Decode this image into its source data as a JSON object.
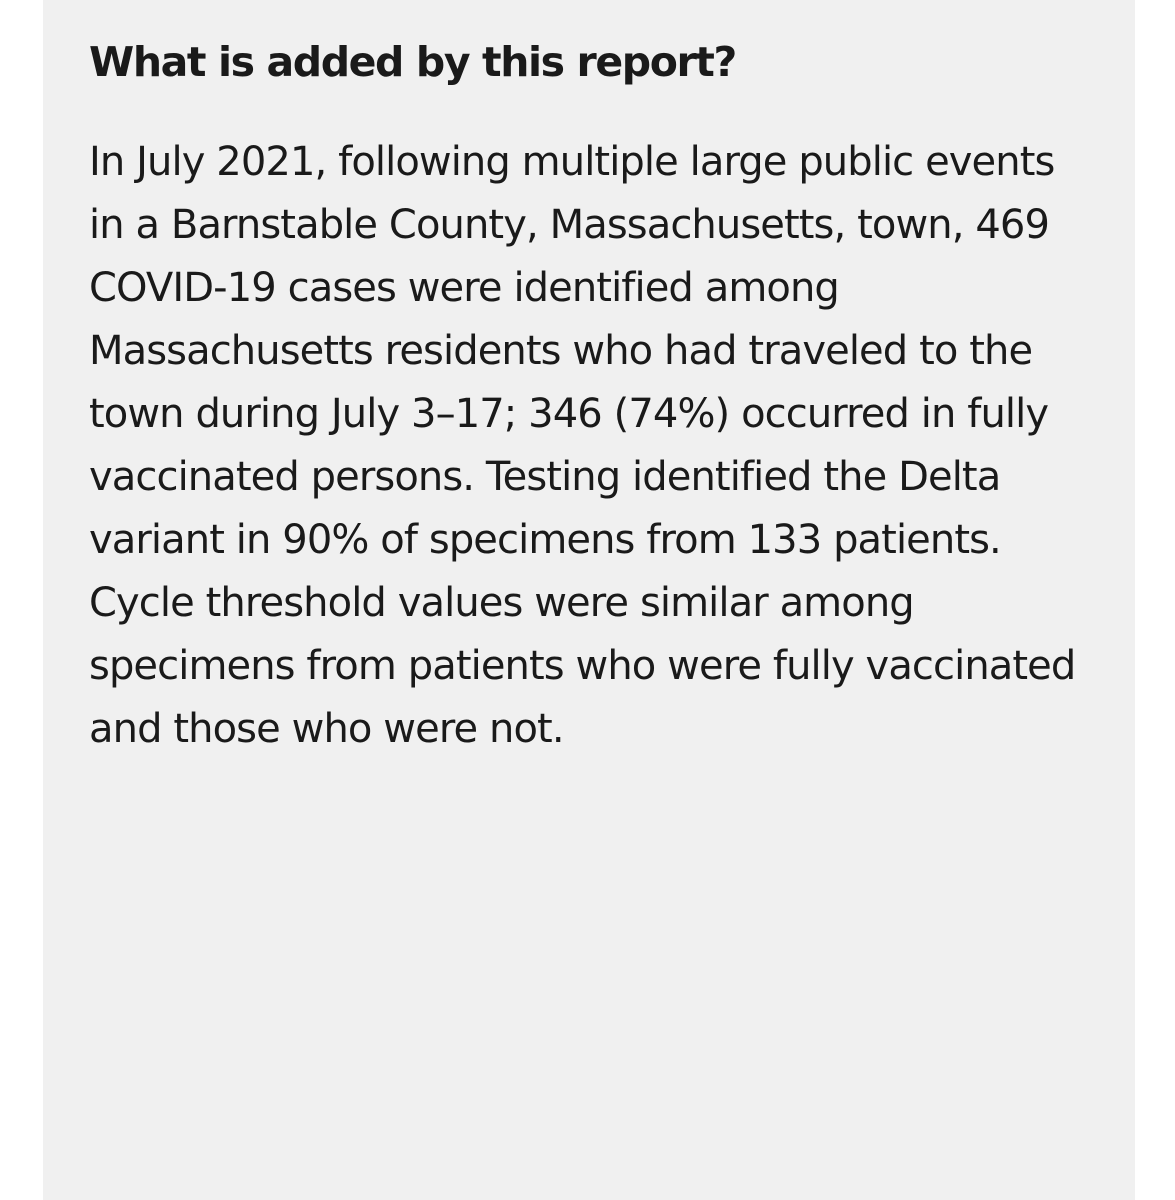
{
  "report": {
    "heading": "What is added by this report?",
    "body": "In July 2021, following multiple large public events in a Barnstable County, Massachusetts, town, 469 COVID-19 cases were identified among Massachusetts residents who had traveled to the town during July 3–17; 346 (74%) occurred in fully vaccinated persons. Testing identified the Delta variant in 90% of specimens from 133 patients. Cycle threshold values were similar among specimens from patients who were fully vaccinated and those who were not."
  }
}
